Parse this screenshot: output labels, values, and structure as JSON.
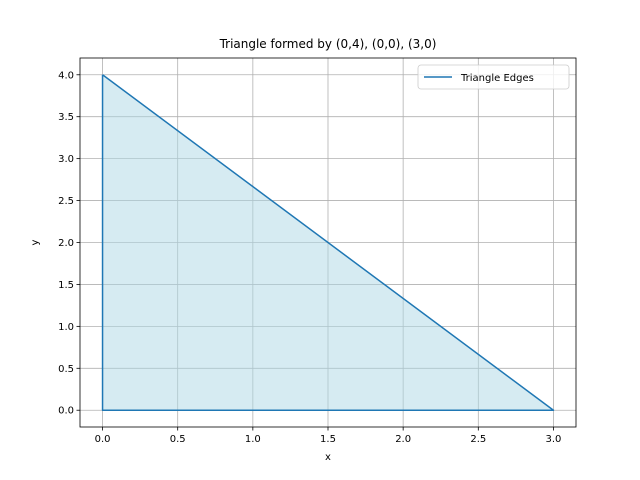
{
  "chart_data": {
    "type": "line",
    "title": "Triangle formed by (0,4), (0,0), (3,0)",
    "xlabel": "x",
    "ylabel": "y",
    "xlim": [
      -0.15,
      3.15
    ],
    "ylim": [
      -0.2,
      4.2
    ],
    "x_ticks": [
      0.0,
      0.5,
      1.0,
      1.5,
      2.0,
      2.5,
      3.0
    ],
    "x_tick_labels": [
      "0.0",
      "0.5",
      "1.0",
      "1.5",
      "2.0",
      "2.5",
      "3.0"
    ],
    "y_ticks": [
      0.0,
      0.5,
      1.0,
      1.5,
      2.0,
      2.5,
      3.0,
      3.5,
      4.0
    ],
    "y_tick_labels": [
      "0.0",
      "0.5",
      "1.0",
      "1.5",
      "2.0",
      "2.5",
      "3.0",
      "3.5",
      "4.0"
    ],
    "grid": true,
    "legend_position": "top-right",
    "series": [
      {
        "name": "Triangle Edges",
        "x": [
          0,
          0,
          3,
          0
        ],
        "y": [
          4,
          0,
          0,
          4
        ],
        "color": "#1f77b4",
        "fill_color": "#add8e6",
        "fill_opacity": 0.5
      }
    ]
  }
}
